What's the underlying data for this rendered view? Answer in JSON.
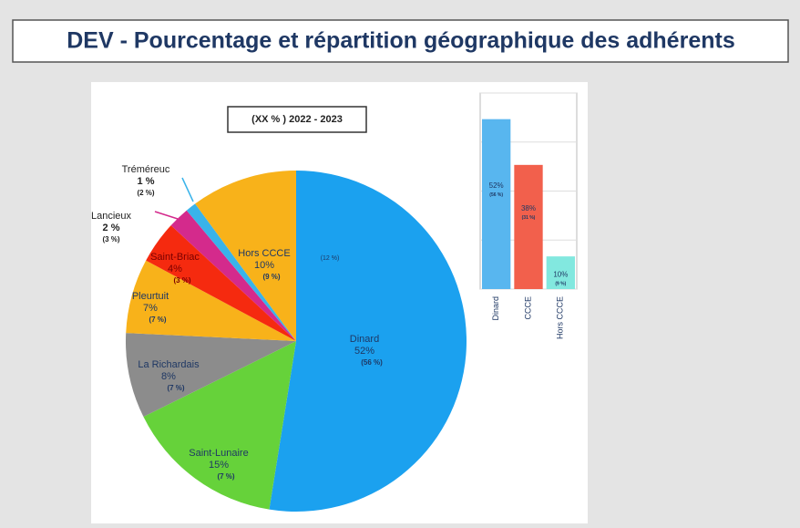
{
  "title": "DEV - Pourcentage et répartition géographique des adhérents",
  "chart_data": [
    {
      "type": "pie",
      "subtitle": "(XX % ) 2022 - 2023",
      "categories": [
        "Dinard",
        "Saint-Lunaire",
        "La Richardais",
        "Pleurtuit",
        "Saint-Briac",
        "Lancieux",
        "Tréméreuc",
        "Hors CCCE"
      ],
      "values": [
        52,
        15,
        8,
        7,
        4,
        2,
        1,
        10
      ],
      "value_labels": [
        "52%",
        "15%",
        "8%",
        "7%",
        "4%",
        "2 %",
        "1 %",
        "10%"
      ],
      "previous_labels": [
        "(56 %)",
        "(7 %)",
        "(7 %)",
        "(7 %)",
        "(3 %)",
        "(3 %)",
        "(2 %)",
        "(9 %)"
      ],
      "colors": [
        "#1ba1ef",
        "#66d23a",
        "#8c8c8c",
        "#f8b21a",
        "#f52a0f",
        "#d42a8c",
        "#39b3ea",
        "#f8b21a"
      ],
      "annotation": "(12 %)"
    },
    {
      "type": "bar",
      "categories": [
        "Dinard",
        "CCCE",
        "Hors CCCE"
      ],
      "values": [
        52,
        38,
        10
      ],
      "value_labels": [
        "52%",
        "38%",
        "10%"
      ],
      "previous_labels": [
        "(56 %)",
        "(31 %)",
        "(9 %)"
      ],
      "colors": [
        "#58b6ef",
        "#f2604c",
        "#82e8df"
      ],
      "ylim": [
        0,
        60
      ],
      "yticks": [
        0,
        15,
        30,
        45,
        60
      ],
      "grid": true
    }
  ]
}
